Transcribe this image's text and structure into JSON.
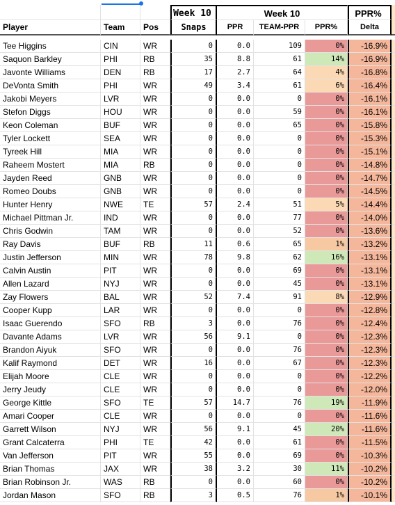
{
  "header_top": {
    "snaps_group": "Week 10",
    "ppr_group": "Week 10",
    "delta_group": "PPR%"
  },
  "columns": {
    "player": "Player",
    "team": "Team",
    "pos": "Pos",
    "snaps": "Snaps",
    "ppr": "PPR",
    "team_ppr": "TEAM-PPR",
    "ppr_pct": "PPR%",
    "delta": "Delta"
  },
  "colors": {
    "red": "#ea9999",
    "orange": "#f6c9a3",
    "light_orange": "#fbd9b5",
    "green": "#cfe8b8",
    "delta_bg": "#f4b79b"
  },
  "rows": [
    {
      "player": "Tee Higgins",
      "team": "CIN",
      "pos": "WR",
      "snaps": "0",
      "ppr": "0.0",
      "team_ppr": "109",
      "ppr_pct": "0%",
      "delta": "-16.9%",
      "pct_color": "red"
    },
    {
      "player": "Saquon Barkley",
      "team": "PHI",
      "pos": "RB",
      "snaps": "35",
      "ppr": "8.8",
      "team_ppr": "61",
      "ppr_pct": "14%",
      "delta": "-16.9%",
      "pct_color": "green"
    },
    {
      "player": "Javonte Williams",
      "team": "DEN",
      "pos": "RB",
      "snaps": "17",
      "ppr": "2.7",
      "team_ppr": "64",
      "ppr_pct": "4%",
      "delta": "-16.8%",
      "pct_color": "light_orange"
    },
    {
      "player": "DeVonta Smith",
      "team": "PHI",
      "pos": "WR",
      "snaps": "49",
      "ppr": "3.4",
      "team_ppr": "61",
      "ppr_pct": "6%",
      "delta": "-16.4%",
      "pct_color": "light_orange"
    },
    {
      "player": "Jakobi Meyers",
      "team": "LVR",
      "pos": "WR",
      "snaps": "0",
      "ppr": "0.0",
      "team_ppr": "0",
      "ppr_pct": "0%",
      "delta": "-16.1%",
      "pct_color": "red"
    },
    {
      "player": "Stefon Diggs",
      "team": "HOU",
      "pos": "WR",
      "snaps": "0",
      "ppr": "0.0",
      "team_ppr": "59",
      "ppr_pct": "0%",
      "delta": "-16.1%",
      "pct_color": "red"
    },
    {
      "player": "Keon Coleman",
      "team": "BUF",
      "pos": "WR",
      "snaps": "0",
      "ppr": "0.0",
      "team_ppr": "65",
      "ppr_pct": "0%",
      "delta": "-15.8%",
      "pct_color": "red"
    },
    {
      "player": "Tyler Lockett",
      "team": "SEA",
      "pos": "WR",
      "snaps": "0",
      "ppr": "0.0",
      "team_ppr": "0",
      "ppr_pct": "0%",
      "delta": "-15.3%",
      "pct_color": "red"
    },
    {
      "player": "Tyreek Hill",
      "team": "MIA",
      "pos": "WR",
      "snaps": "0",
      "ppr": "0.0",
      "team_ppr": "0",
      "ppr_pct": "0%",
      "delta": "-15.1%",
      "pct_color": "red"
    },
    {
      "player": "Raheem Mostert",
      "team": "MIA",
      "pos": "RB",
      "snaps": "0",
      "ppr": "0.0",
      "team_ppr": "0",
      "ppr_pct": "0%",
      "delta": "-14.8%",
      "pct_color": "red"
    },
    {
      "player": "Jayden Reed",
      "team": "GNB",
      "pos": "WR",
      "snaps": "0",
      "ppr": "0.0",
      "team_ppr": "0",
      "ppr_pct": "0%",
      "delta": "-14.7%",
      "pct_color": "red"
    },
    {
      "player": "Romeo Doubs",
      "team": "GNB",
      "pos": "WR",
      "snaps": "0",
      "ppr": "0.0",
      "team_ppr": "0",
      "ppr_pct": "0%",
      "delta": "-14.5%",
      "pct_color": "red"
    },
    {
      "player": "Hunter Henry",
      "team": "NWE",
      "pos": "TE",
      "snaps": "57",
      "ppr": "2.4",
      "team_ppr": "51",
      "ppr_pct": "5%",
      "delta": "-14.4%",
      "pct_color": "light_orange"
    },
    {
      "player": "Michael Pittman Jr.",
      "team": "IND",
      "pos": "WR",
      "snaps": "0",
      "ppr": "0.0",
      "team_ppr": "77",
      "ppr_pct": "0%",
      "delta": "-14.0%",
      "pct_color": "red"
    },
    {
      "player": "Chris Godwin",
      "team": "TAM",
      "pos": "WR",
      "snaps": "0",
      "ppr": "0.0",
      "team_ppr": "52",
      "ppr_pct": "0%",
      "delta": "-13.6%",
      "pct_color": "red"
    },
    {
      "player": "Ray Davis",
      "team": "BUF",
      "pos": "RB",
      "snaps": "11",
      "ppr": "0.6",
      "team_ppr": "65",
      "ppr_pct": "1%",
      "delta": "-13.2%",
      "pct_color": "orange"
    },
    {
      "player": "Justin Jefferson",
      "team": "MIN",
      "pos": "WR",
      "snaps": "78",
      "ppr": "9.8",
      "team_ppr": "62",
      "ppr_pct": "16%",
      "delta": "-13.1%",
      "pct_color": "green"
    },
    {
      "player": "Calvin Austin",
      "team": "PIT",
      "pos": "WR",
      "snaps": "0",
      "ppr": "0.0",
      "team_ppr": "69",
      "ppr_pct": "0%",
      "delta": "-13.1%",
      "pct_color": "red"
    },
    {
      "player": "Allen Lazard",
      "team": "NYJ",
      "pos": "WR",
      "snaps": "0",
      "ppr": "0.0",
      "team_ppr": "45",
      "ppr_pct": "0%",
      "delta": "-13.1%",
      "pct_color": "red"
    },
    {
      "player": "Zay Flowers",
      "team": "BAL",
      "pos": "WR",
      "snaps": "52",
      "ppr": "7.4",
      "team_ppr": "91",
      "ppr_pct": "8%",
      "delta": "-12.9%",
      "pct_color": "light_orange"
    },
    {
      "player": "Cooper Kupp",
      "team": "LAR",
      "pos": "WR",
      "snaps": "0",
      "ppr": "0.0",
      "team_ppr": "0",
      "ppr_pct": "0%",
      "delta": "-12.8%",
      "pct_color": "red"
    },
    {
      "player": "Isaac Guerendo",
      "team": "SFO",
      "pos": "RB",
      "snaps": "3",
      "ppr": "0.0",
      "team_ppr": "76",
      "ppr_pct": "0%",
      "delta": "-12.4%",
      "pct_color": "red"
    },
    {
      "player": "Davante Adams",
      "team": "LVR",
      "pos": "WR",
      "snaps": "56",
      "ppr": "9.1",
      "team_ppr": "0",
      "ppr_pct": "0%",
      "delta": "-12.3%",
      "pct_color": "red"
    },
    {
      "player": "Brandon Aiyuk",
      "team": "SFO",
      "pos": "WR",
      "snaps": "0",
      "ppr": "0.0",
      "team_ppr": "76",
      "ppr_pct": "0%",
      "delta": "-12.3%",
      "pct_color": "red"
    },
    {
      "player": "Kalif Raymond",
      "team": "DET",
      "pos": "WR",
      "snaps": "16",
      "ppr": "0.0",
      "team_ppr": "67",
      "ppr_pct": "0%",
      "delta": "-12.3%",
      "pct_color": "red"
    },
    {
      "player": "Elijah Moore",
      "team": "CLE",
      "pos": "WR",
      "snaps": "0",
      "ppr": "0.0",
      "team_ppr": "0",
      "ppr_pct": "0%",
      "delta": "-12.2%",
      "pct_color": "red"
    },
    {
      "player": "Jerry Jeudy",
      "team": "CLE",
      "pos": "WR",
      "snaps": "0",
      "ppr": "0.0",
      "team_ppr": "0",
      "ppr_pct": "0%",
      "delta": "-12.0%",
      "pct_color": "red"
    },
    {
      "player": "George Kittle",
      "team": "SFO",
      "pos": "TE",
      "snaps": "57",
      "ppr": "14.7",
      "team_ppr": "76",
      "ppr_pct": "19%",
      "delta": "-11.9%",
      "pct_color": "green"
    },
    {
      "player": "Amari Cooper",
      "team": "CLE",
      "pos": "WR",
      "snaps": "0",
      "ppr": "0.0",
      "team_ppr": "0",
      "ppr_pct": "0%",
      "delta": "-11.6%",
      "pct_color": "red"
    },
    {
      "player": "Garrett Wilson",
      "team": "NYJ",
      "pos": "WR",
      "snaps": "56",
      "ppr": "9.1",
      "team_ppr": "45",
      "ppr_pct": "20%",
      "delta": "-11.6%",
      "pct_color": "green"
    },
    {
      "player": "Grant Calcaterra",
      "team": "PHI",
      "pos": "TE",
      "snaps": "42",
      "ppr": "0.0",
      "team_ppr": "61",
      "ppr_pct": "0%",
      "delta": "-11.5%",
      "pct_color": "red"
    },
    {
      "player": "Van Jefferson",
      "team": "PIT",
      "pos": "WR",
      "snaps": "55",
      "ppr": "0.0",
      "team_ppr": "69",
      "ppr_pct": "0%",
      "delta": "-10.3%",
      "pct_color": "red"
    },
    {
      "player": "Brian Thomas",
      "team": "JAX",
      "pos": "WR",
      "snaps": "38",
      "ppr": "3.2",
      "team_ppr": "30",
      "ppr_pct": "11%",
      "delta": "-10.2%",
      "pct_color": "green"
    },
    {
      "player": "Brian Robinson Jr.",
      "team": "WAS",
      "pos": "RB",
      "snaps": "0",
      "ppr": "0.0",
      "team_ppr": "60",
      "ppr_pct": "0%",
      "delta": "-10.2%",
      "pct_color": "red"
    },
    {
      "player": "Jordan Mason",
      "team": "SFO",
      "pos": "RB",
      "snaps": "3",
      "ppr": "0.5",
      "team_ppr": "76",
      "ppr_pct": "1%",
      "delta": "-10.1%",
      "pct_color": "orange"
    }
  ]
}
